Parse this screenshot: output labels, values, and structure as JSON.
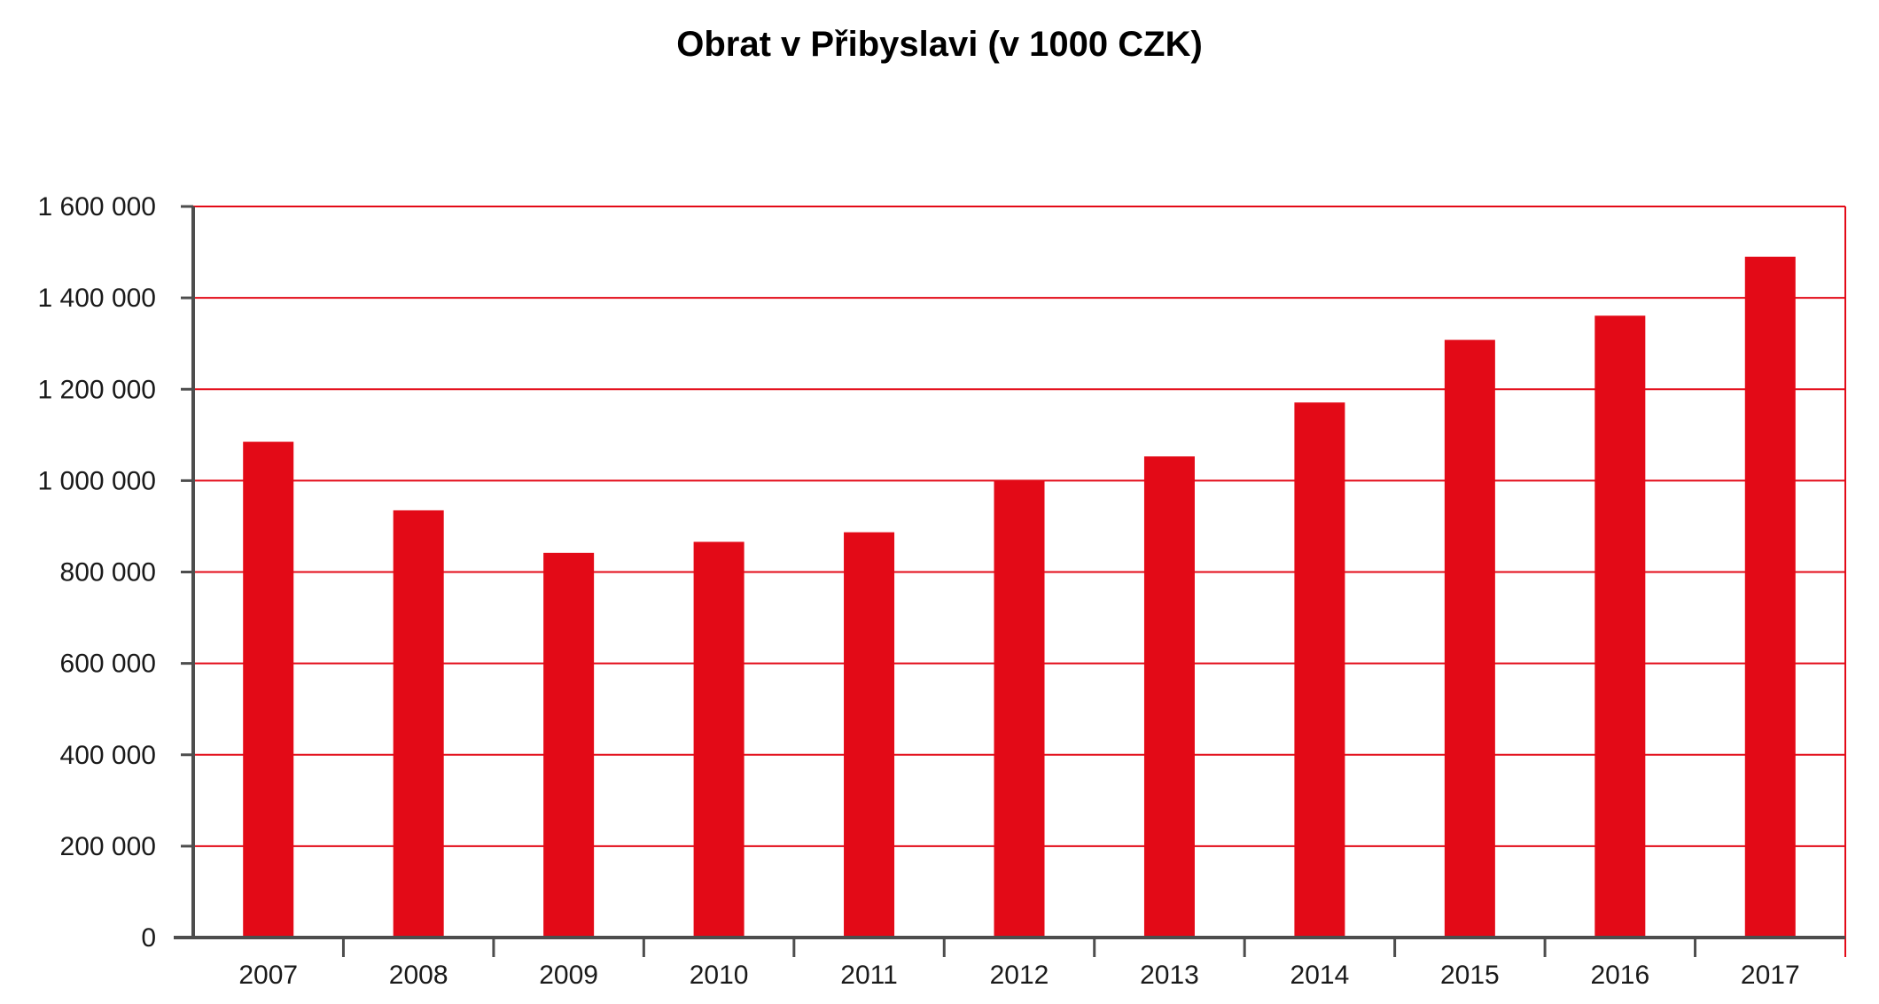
{
  "chart_data": {
    "type": "bar",
    "title": "Obrat v Přibyslavi (v 1000 CZK)",
    "xlabel": "",
    "ylabel": "",
    "categories": [
      "2007",
      "2008",
      "2009",
      "2010",
      "2011",
      "2012",
      "2013",
      "2014",
      "2015",
      "2016",
      "2017"
    ],
    "series": [
      {
        "values": [
          1085000,
          935000,
          842000,
          866000,
          887000,
          1000000,
          1053000,
          1171000,
          1308000,
          1361000,
          1490000
        ]
      }
    ],
    "ylim": [
      0,
      1600000
    ],
    "y_ticks": [
      0,
      200000,
      400000,
      600000,
      800000,
      1000000,
      1200000,
      1400000,
      1600000
    ],
    "y_tick_labels": [
      "0",
      "200 000",
      "400 000",
      "600 000",
      "800 000",
      "1 000 000",
      "1 200 000",
      "1 400 000",
      "1 600 000"
    ],
    "grid": true,
    "legend": "none",
    "colors": {
      "bar": "#e30a17",
      "grid": "#e30a17",
      "axis": "#4d4d4d"
    }
  }
}
